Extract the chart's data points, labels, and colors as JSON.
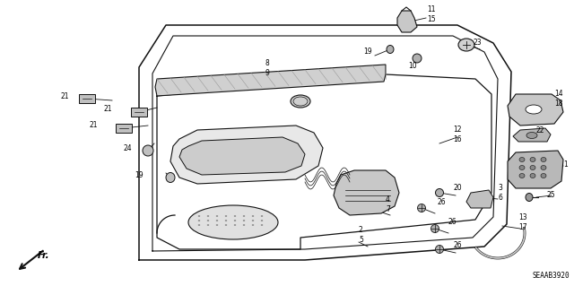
{
  "bg_color": "#ffffff",
  "diagram_code": "SEAAB3920",
  "line_color": "#111111",
  "gray_color": "#888888"
}
